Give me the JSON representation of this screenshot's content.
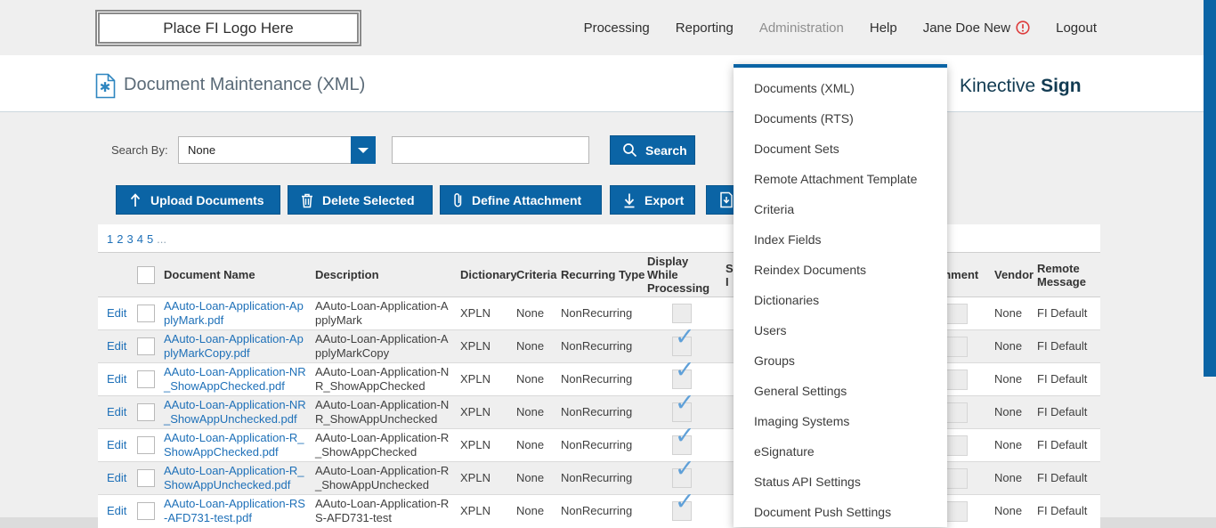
{
  "header": {
    "logo_text": "Place FI Logo Here",
    "nav": [
      {
        "label": "Processing",
        "active": false,
        "warning": false
      },
      {
        "label": "Reporting",
        "active": false,
        "warning": false
      },
      {
        "label": "Administration",
        "active": true,
        "warning": false
      },
      {
        "label": "Help",
        "active": false,
        "warning": false
      },
      {
        "label": "Jane Doe New",
        "active": false,
        "warning": true
      },
      {
        "label": "Logout",
        "active": false,
        "warning": false
      }
    ]
  },
  "page": {
    "title": "Document Maintenance (XML)",
    "brand_name": "Kinective",
    "brand_bold": "Sign"
  },
  "search": {
    "label": "Search By:",
    "selected_option": "None",
    "input_value": "",
    "button_label": "Search"
  },
  "toolbar": {
    "buttons": [
      {
        "label": "Upload Documents",
        "icon": "upload-icon"
      },
      {
        "label": "Delete Selected",
        "icon": "trash-icon"
      },
      {
        "label": "Define Attachment",
        "icon": "paperclip-icon"
      },
      {
        "label": "Export",
        "icon": "export-icon"
      }
    ],
    "partial_button_icon": "document-download-icon"
  },
  "pagination": {
    "pages": [
      "1",
      "2",
      "3",
      "4",
      "5"
    ],
    "ellipsis": "..."
  },
  "table": {
    "header": {
      "document_name": "Document Name",
      "description": "Description",
      "dictionary": "Dictionary",
      "criteria": "Criteria",
      "recurring_type": "Recurring Type",
      "display_while_processing": "Display While Processing",
      "hidden_fragment_line1": "S",
      "hidden_fragment_line2": "I",
      "attachment_fragment": "chment",
      "vendor": "Vendor",
      "remote_message": "Remote Message"
    },
    "edit_label": "Edit",
    "rows": [
      {
        "name": "AAuto-Loan-Application-ApplyMark.pdf",
        "description": "AAuto-Loan-Application-ApplyMark",
        "dictionary": "XPLN",
        "criteria": "None",
        "recurring_type": "NonRecurring",
        "display_while_processing": false,
        "vendor": "None",
        "remote_message": "FI Default"
      },
      {
        "name": "AAuto-Loan-Application-ApplyMarkCopy.pdf",
        "description": "AAuto-Loan-Application-ApplyMarkCopy",
        "dictionary": "XPLN",
        "criteria": "None",
        "recurring_type": "NonRecurring",
        "display_while_processing": true,
        "vendor": "None",
        "remote_message": "FI Default"
      },
      {
        "name": "AAuto-Loan-Application-NR_ShowAppChecked.pdf",
        "description": "AAuto-Loan-Application-NR_ShowAppChecked",
        "dictionary": "XPLN",
        "criteria": "None",
        "recurring_type": "NonRecurring",
        "display_while_processing": true,
        "vendor": "None",
        "remote_message": "FI Default"
      },
      {
        "name": "AAuto-Loan-Application-NR_ShowAppUnchecked.pdf",
        "description": "AAuto-Loan-Application-NR_ShowAppUnchecked",
        "dictionary": "XPLN",
        "criteria": "None",
        "recurring_type": "NonRecurring",
        "display_while_processing": true,
        "vendor": "None",
        "remote_message": "FI Default"
      },
      {
        "name": "AAuto-Loan-Application-R_ShowAppChecked.pdf",
        "description": "AAuto-Loan-Application-R_ShowAppChecked",
        "dictionary": "XPLN",
        "criteria": "None",
        "recurring_type": "NonRecurring",
        "display_while_processing": true,
        "vendor": "None",
        "remote_message": "FI Default"
      },
      {
        "name": "AAuto-Loan-Application-R_ShowAppUnchecked.pdf",
        "description": "AAuto-Loan-Application-R_ShowAppUnchecked",
        "dictionary": "XPLN",
        "criteria": "None",
        "recurring_type": "NonRecurring",
        "display_while_processing": true,
        "vendor": "None",
        "remote_message": "FI Default"
      },
      {
        "name": "AAuto-Loan-Application-RS-AFD731-test.pdf",
        "description": "AAuto-Loan-Application-RS-AFD731-test",
        "dictionary": "XPLN",
        "criteria": "None",
        "recurring_type": "NonRecurring",
        "display_while_processing": true,
        "vendor": "None",
        "remote_message": "FI Default"
      }
    ]
  },
  "admin_menu": {
    "items": [
      "Documents (XML)",
      "Documents (RTS)",
      "Document Sets",
      "Remote Attachment Template",
      "Criteria",
      "Index Fields",
      "Reindex Documents",
      "Dictionaries",
      "Users",
      "Groups",
      "General Settings",
      "Imaging Systems",
      "eSignature",
      "Status API Settings",
      "Document Push Settings"
    ]
  },
  "colors": {
    "primary_blue": "#0b64a5",
    "link_blue": "#1e70b8",
    "check_blue": "#5fa0d8",
    "brand_teal": "#123b52",
    "warning_red": "#dd3c3c",
    "page_gray": "#efefef"
  }
}
